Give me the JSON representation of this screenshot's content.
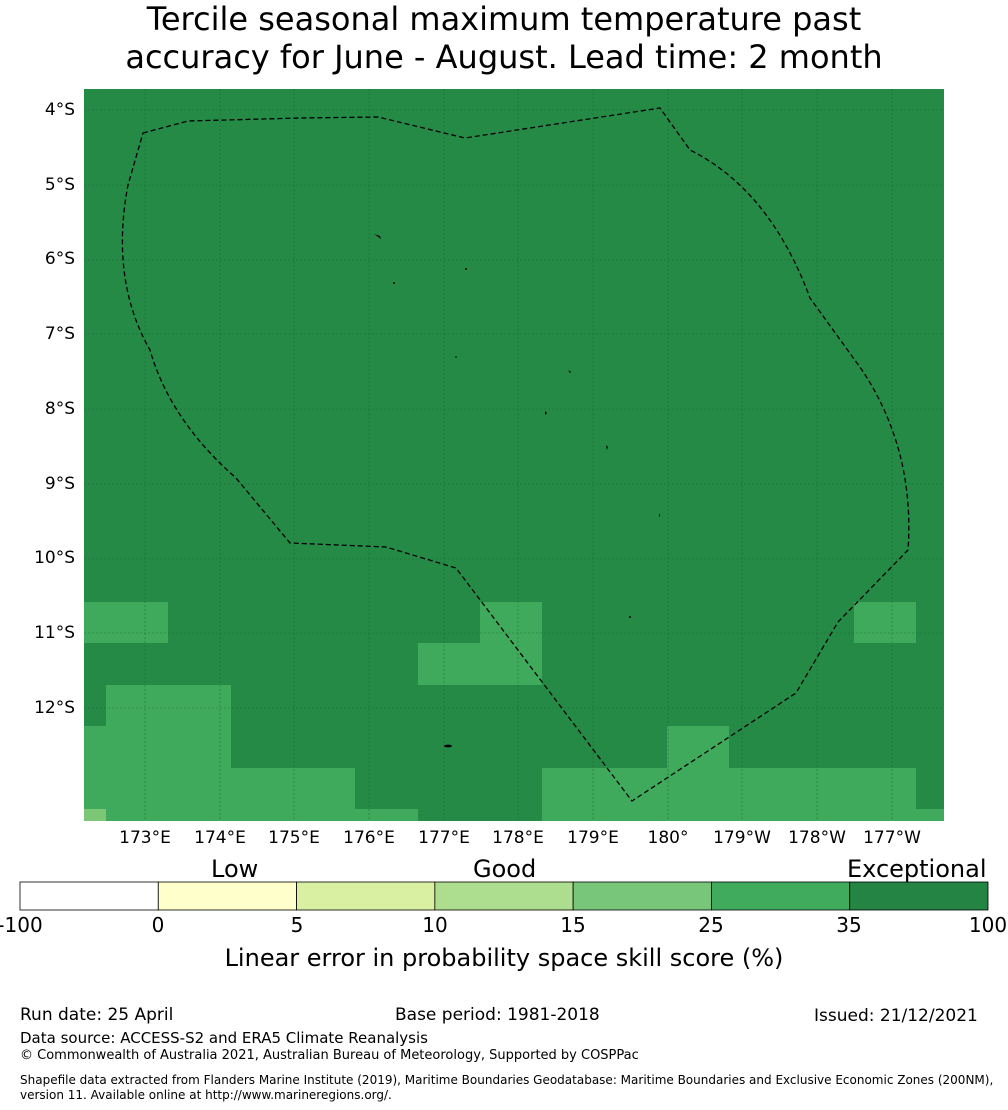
{
  "title_line1": "Tercile seasonal maximum temperature past",
  "title_line2": "accuracy for June - August. Lead time: 2 month",
  "map": {
    "lat_labels": [
      "4°S",
      "5°S",
      "6°S",
      "7°S",
      "8°S",
      "9°S",
      "10°S",
      "11°S",
      "12°S"
    ],
    "lon_labels": [
      "173°E",
      "174°E",
      "175°E",
      "176°E",
      "177°E",
      "178°E",
      "179°E",
      "180°",
      "179°W",
      "178°W",
      "177°W"
    ],
    "base_color": "#258a46",
    "medium_color": "#3fa95c",
    "light_color": "#7bc776"
  },
  "colorbar": {
    "categories": [
      "Low",
      "Good",
      "Exceptional"
    ],
    "ticks": [
      "-100",
      "0",
      "5",
      "10",
      "15",
      "25",
      "35",
      "100"
    ],
    "colors": [
      "#ffffff",
      "#ffffcc",
      "#d9f0a3",
      "#addd8e",
      "#78c679",
      "#41ab5d",
      "#238443"
    ],
    "label": "Linear error in probability space skill score (%)"
  },
  "footer": {
    "run_date": "Run date: 25 April",
    "base_period": "Base period: 1981-2018",
    "issued": "Issued: 21/12/2021",
    "data_source": "Data source: ACCESS-S2 and ERA5 Climate Reanalysis",
    "copyright": "© Commonwealth of Australia 2021, Australian Bureau of Meteorology, Supported by COSPPac",
    "shapefile": "Shapefile data extracted from Flanders Marine Institute (2019), Maritime Boundaries Geodatabase: Maritime Boundaries and Exclusive Economic Zones (200NM), version 11. Available online at http://www.marineregions.org/."
  }
}
